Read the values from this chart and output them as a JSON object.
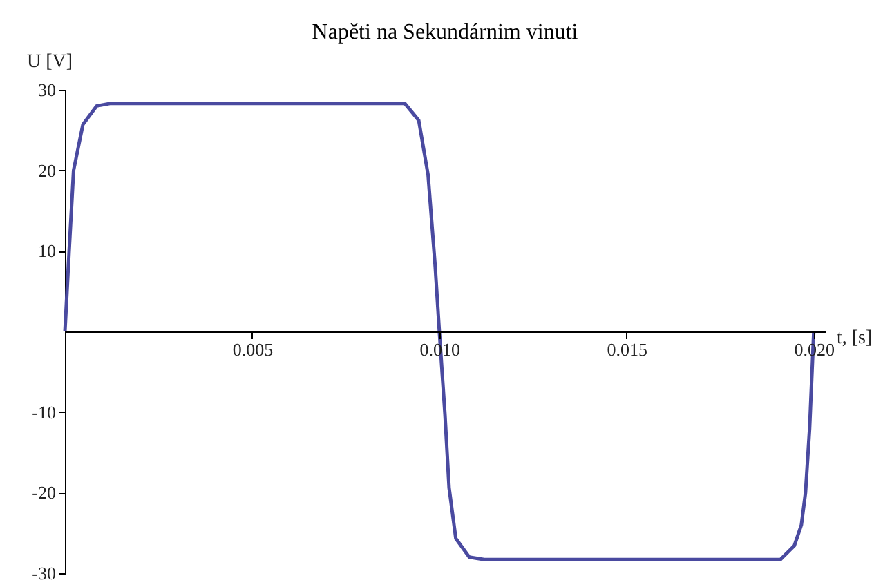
{
  "chart_data": {
    "type": "line",
    "title": "Napěti na Sekundárnim vinuti",
    "xlabel": "t, [s]",
    "ylabel": "U [V]",
    "x": [
      0,
      0.00011,
      0.00023,
      0.00048,
      0.00085,
      0.0012,
      0.00908,
      0.00945,
      0.0097,
      0.00989,
      0.01,
      0.01015,
      0.01026,
      0.01044,
      0.0108,
      0.0112,
      0.01911,
      0.01948,
      0.01967,
      0.01978,
      0.01989,
      0.02
    ],
    "series": [
      {
        "color": "#4a4aa0",
        "values": [
          0,
          9.8,
          20,
          25.7,
          28,
          28.3,
          28.3,
          26.2,
          19.4,
          8,
          0,
          -10.3,
          -19.4,
          -25.7,
          -28,
          -28.3,
          -28.3,
          -26.6,
          -24,
          -20,
          -12,
          0
        ]
      }
    ],
    "xlim": [
      0,
      0.0203
    ],
    "ylim": [
      -30,
      30
    ],
    "xticks": [
      0.005,
      {
        "value": 0.01,
        "label": "0.010"
      },
      0.015,
      {
        "value": 0.02,
        "label": "0.020"
      }
    ],
    "yticks": [
      -30,
      -20,
      -10,
      10,
      20,
      30
    ]
  }
}
